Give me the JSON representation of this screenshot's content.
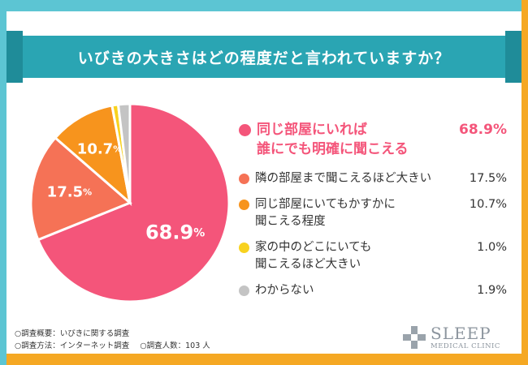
{
  "colors": {
    "frame_cyan": "#5cc5d3",
    "frame_orange": "#f5a823",
    "title_band": "#2aa5b3",
    "title_tab": "#1f8c99",
    "slice_pink": "#f4557a",
    "slice_coral": "#f57256",
    "slice_orange": "#f7941d",
    "slice_yellow": "#f8d21f",
    "slice_gray": "#c4c4c4",
    "logo_gray": "#8c959e"
  },
  "title": "いびきの大きさはどの程度だと言われていますか？",
  "chart_data": {
    "type": "pie",
    "title": "いびきの大きさはどの程度だと言われていますか？",
    "unit": "%",
    "series": [
      {
        "name": "同じ部屋にいれば誰にでも明確に聞こえる",
        "value": 68.9,
        "color": "#f4557a",
        "slice_label": "68.9",
        "slice_unit": "%"
      },
      {
        "name": "隣の部屋まで聞こえるほど大きい",
        "value": 17.5,
        "color": "#f57256",
        "slice_label": "17.5",
        "slice_unit": "%"
      },
      {
        "name": "同じ部屋にいてもかすかに聞こえる程度",
        "value": 10.7,
        "color": "#f7941d",
        "slice_label": "10.7",
        "slice_unit": "%"
      },
      {
        "name": "家の中のどこにいても聞こえるほど大きい",
        "value": 1.0,
        "color": "#f8d21f",
        "slice_label": "",
        "slice_unit": ""
      },
      {
        "name": "わからない",
        "value": 1.9,
        "color": "#c4c4c4",
        "slice_label": "",
        "slice_unit": ""
      }
    ]
  },
  "legend": [
    {
      "line1": "同じ部屋にいれば",
      "line2": "誰にでも明確に聞こえる",
      "value": "68.9%",
      "color": "#f4557a",
      "text_color": "#f4557a"
    },
    {
      "line1": "隣の部屋まで聞こえるほど大きい",
      "line2": "",
      "value": "17.5%",
      "color": "#f57256",
      "text_color": "#333333"
    },
    {
      "line1": "同じ部屋にいてもかすかに",
      "line2": "聞こえる程度",
      "value": "10.7%",
      "color": "#f7941d",
      "text_color": "#333333"
    },
    {
      "line1": "家の中のどこにいても",
      "line2": "聞こえるほど大きい",
      "value": "1.0%",
      "color": "#f8d21f",
      "text_color": "#333333"
    },
    {
      "line1": "わからない",
      "line2": "",
      "value": "1.9%",
      "color": "#c4c4c4",
      "text_color": "#333333"
    }
  ],
  "footnotes": {
    "overview": "○調査概要：いびきに関する調査",
    "method": "○調査方法：インターネット調査",
    "sample": "○調査人数：103 人"
  },
  "logo": {
    "line1": "SLEEP",
    "line2": "MEDICAL CLINIC"
  }
}
